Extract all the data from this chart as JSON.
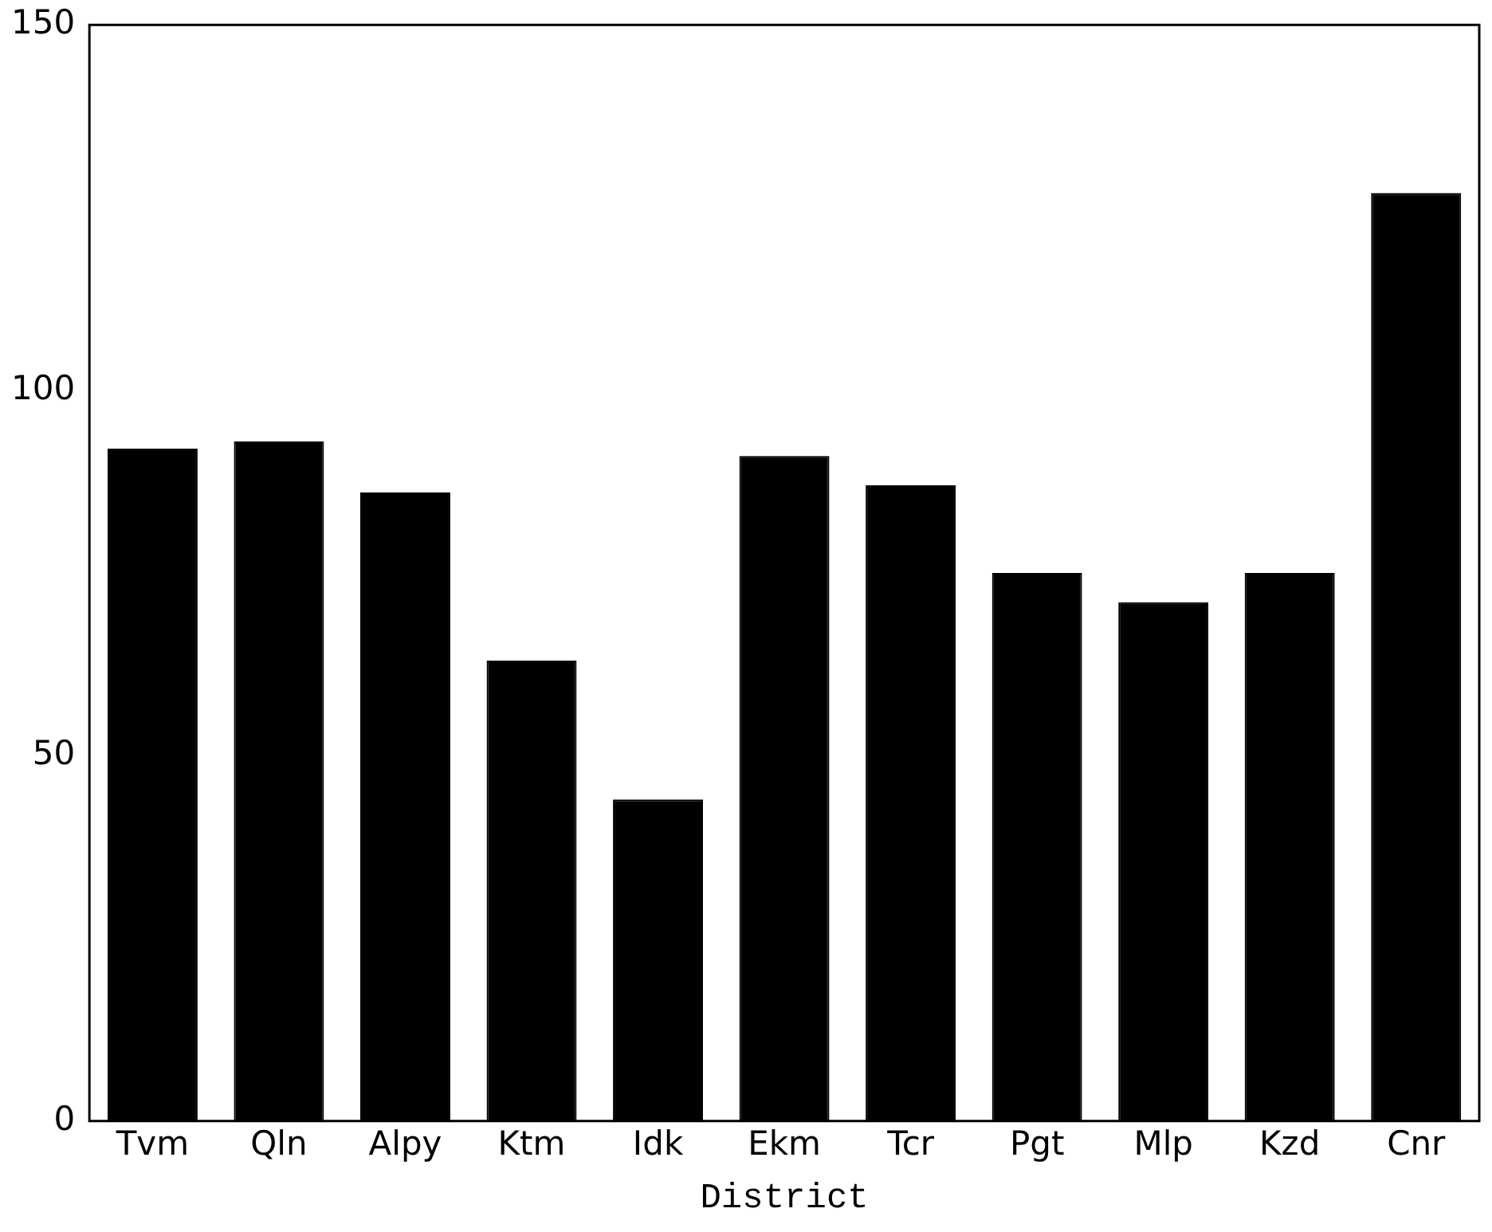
{
  "chart_data": {
    "type": "bar",
    "xlabel": "District",
    "categories": [
      "Tvm",
      "Qln",
      "Alpy",
      "Ktm",
      "Idk",
      "Ekm",
      "Tcr",
      "Pgt",
      "Mlp",
      "Kzd",
      "Cnr"
    ],
    "values": [
      92,
      93,
      86,
      63,
      44,
      91,
      87,
      75,
      71,
      75,
      127
    ],
    "color": "#000000",
    "ylim": [
      0,
      150
    ],
    "yticks": [
      0,
      50,
      100,
      150
    ],
    "grid": false,
    "legend": false
  }
}
